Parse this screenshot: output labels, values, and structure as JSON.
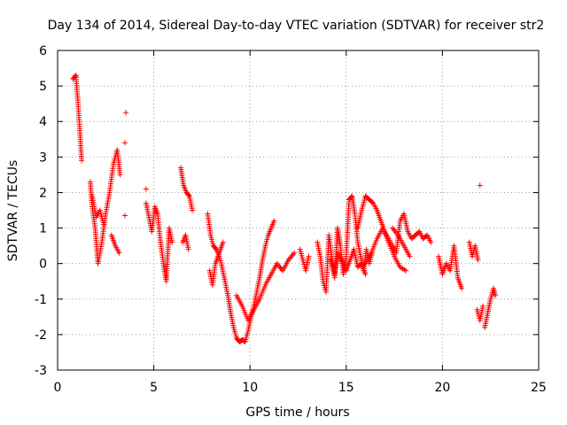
{
  "chart_data": {
    "type": "scatter",
    "title": "Day 134 of 2014, Sidereal Day-to-day VTEC variation (SDTVAR) for receiver str2",
    "xlabel": "GPS time / hours",
    "ylabel": "SDTVAR / TECUs",
    "xlim": [
      0,
      25
    ],
    "ylim": [
      -3,
      6
    ],
    "xticks": [
      "0",
      "5",
      "10",
      "15",
      "20",
      "25"
    ],
    "yticks": [
      "-3",
      "-2",
      "-1",
      "0",
      "1",
      "2",
      "3",
      "4",
      "5",
      "6"
    ],
    "grid": true,
    "marker": "+",
    "color": "#ff0000",
    "segments": [
      {
        "x": [
          0.8,
          0.95,
          1.05,
          1.15,
          1.25
        ],
        "y": [
          5.2,
          5.3,
          4.6,
          3.8,
          2.9
        ]
      },
      {
        "x": [
          1.7,
          1.8,
          1.95,
          2.1,
          2.3,
          2.5,
          2.7,
          2.9,
          3.1,
          3.25
        ],
        "y": [
          2.3,
          1.6,
          1.0,
          0.0,
          0.6,
          1.4,
          2.0,
          2.8,
          3.2,
          2.5
        ]
      },
      {
        "x": [
          1.8,
          2.0,
          2.2,
          2.4
        ],
        "y": [
          1.9,
          1.3,
          1.5,
          1.1
        ]
      },
      {
        "x": [
          2.8,
          3.0,
          3.2
        ],
        "y": [
          0.8,
          0.5,
          0.3
        ]
      },
      {
        "x": [
          4.6,
          4.75,
          4.9,
          5.05,
          5.2,
          5.35,
          5.5,
          5.65,
          5.8,
          5.95
        ],
        "y": [
          1.7,
          1.3,
          0.9,
          1.6,
          1.4,
          0.6,
          0.0,
          -0.5,
          1.0,
          0.6
        ]
      },
      {
        "x": [
          6.4,
          6.55,
          6.7,
          6.85,
          7.0
        ],
        "y": [
          2.7,
          2.2,
          2.0,
          1.9,
          1.5
        ]
      },
      {
        "x": [
          6.5,
          6.65,
          6.8
        ],
        "y": [
          0.6,
          0.8,
          0.4
        ]
      },
      {
        "x": [
          7.8,
          7.95,
          8.1,
          8.25,
          8.4,
          8.55,
          8.7,
          8.85,
          9.0,
          9.15,
          9.3,
          9.45,
          9.6,
          9.75,
          9.9,
          10.05,
          10.2,
          10.35,
          10.5,
          10.65,
          10.8,
          10.95,
          11.1,
          11.25
        ],
        "y": [
          1.4,
          0.8,
          0.5,
          0.4,
          0.2,
          -0.1,
          -0.5,
          -0.9,
          -1.4,
          -1.8,
          -2.1,
          -2.2,
          -2.15,
          -2.2,
          -1.9,
          -1.5,
          -1.2,
          -0.8,
          -0.4,
          0.1,
          0.5,
          0.8,
          1.0,
          1.2
        ]
      },
      {
        "x": [
          7.9,
          8.05,
          8.2,
          8.4,
          8.6
        ],
        "y": [
          -0.2,
          -0.6,
          0.0,
          0.3,
          0.6
        ]
      },
      {
        "x": [
          9.3,
          9.6,
          9.9,
          10.2,
          10.5,
          10.8,
          11.1,
          11.4,
          11.7,
          12.0,
          12.3
        ],
        "y": [
          -0.9,
          -1.2,
          -1.6,
          -1.3,
          -1.0,
          -0.6,
          -0.3,
          0.0,
          -0.2,
          0.1,
          0.3
        ]
      },
      {
        "x": [
          12.6,
          12.75,
          12.9,
          13.05
        ],
        "y": [
          0.4,
          0.1,
          -0.2,
          0.2
        ]
      },
      {
        "x": [
          13.5,
          13.65,
          13.8,
          13.95,
          14.1,
          14.25,
          14.4,
          14.55,
          14.7,
          14.85,
          15.0,
          15.15,
          15.3,
          15.45,
          15.6,
          15.75,
          15.9,
          16.05,
          16.2,
          16.35
        ],
        "y": [
          0.6,
          0.2,
          -0.5,
          -0.8,
          0.8,
          0.2,
          -0.4,
          1.0,
          0.5,
          -0.3,
          0.2,
          1.8,
          1.9,
          1.4,
          0.6,
          0.2,
          -0.2,
          0.4,
          0.0,
          0.3
        ]
      },
      {
        "x": [
          14.2,
          14.4,
          14.6,
          14.8,
          15.0,
          15.2,
          15.4,
          15.6,
          15.8,
          16.0
        ],
        "y": [
          0.1,
          -0.3,
          0.3,
          0.0,
          -0.2,
          0.1,
          0.4,
          -0.1,
          0.0,
          -0.3
        ]
      },
      {
        "x": [
          15.6,
          15.8,
          16.0,
          16.2,
          16.4,
          16.6,
          16.8,
          17.0,
          17.2,
          17.4,
          17.6,
          17.8,
          18.0,
          18.2,
          18.4,
          18.6,
          18.8,
          19.0,
          19.2,
          19.4
        ],
        "y": [
          1.0,
          1.5,
          1.9,
          1.8,
          1.7,
          1.5,
          1.2,
          0.9,
          0.7,
          0.5,
          0.3,
          1.2,
          1.4,
          0.9,
          0.7,
          0.8,
          0.9,
          0.7,
          0.8,
          0.6
        ]
      },
      {
        "x": [
          16.0,
          16.3,
          16.6,
          16.9,
          17.2,
          17.5,
          17.8,
          18.1
        ],
        "y": [
          0.0,
          0.3,
          0.7,
          1.0,
          0.6,
          0.2,
          -0.1,
          -0.2
        ]
      },
      {
        "x": [
          17.4,
          17.7,
          18.0,
          18.3
        ],
        "y": [
          1.0,
          0.8,
          0.5,
          0.2
        ]
      },
      {
        "x": [
          19.8,
          20.0,
          20.2,
          20.4,
          20.6,
          20.8,
          21.0
        ],
        "y": [
          0.2,
          -0.3,
          0.0,
          -0.2,
          0.5,
          -0.4,
          -0.7
        ]
      },
      {
        "x": [
          21.4,
          21.55,
          21.7,
          21.85
        ],
        "y": [
          0.6,
          0.2,
          0.5,
          0.1
        ]
      },
      {
        "x": [
          21.8,
          21.95,
          22.1
        ],
        "y": [
          -1.3,
          -1.6,
          -1.2
        ]
      },
      {
        "x": [
          22.2,
          22.35,
          22.5,
          22.65,
          22.75
        ],
        "y": [
          -1.8,
          -1.4,
          -1.0,
          -0.7,
          -0.9
        ]
      }
    ],
    "outliers": [
      {
        "x": 3.55,
        "y": 4.25
      },
      {
        "x": 3.5,
        "y": 3.4
      },
      {
        "x": 3.5,
        "y": 1.35
      },
      {
        "x": 4.6,
        "y": 2.1
      },
      {
        "x": 21.95,
        "y": 2.2
      }
    ]
  }
}
